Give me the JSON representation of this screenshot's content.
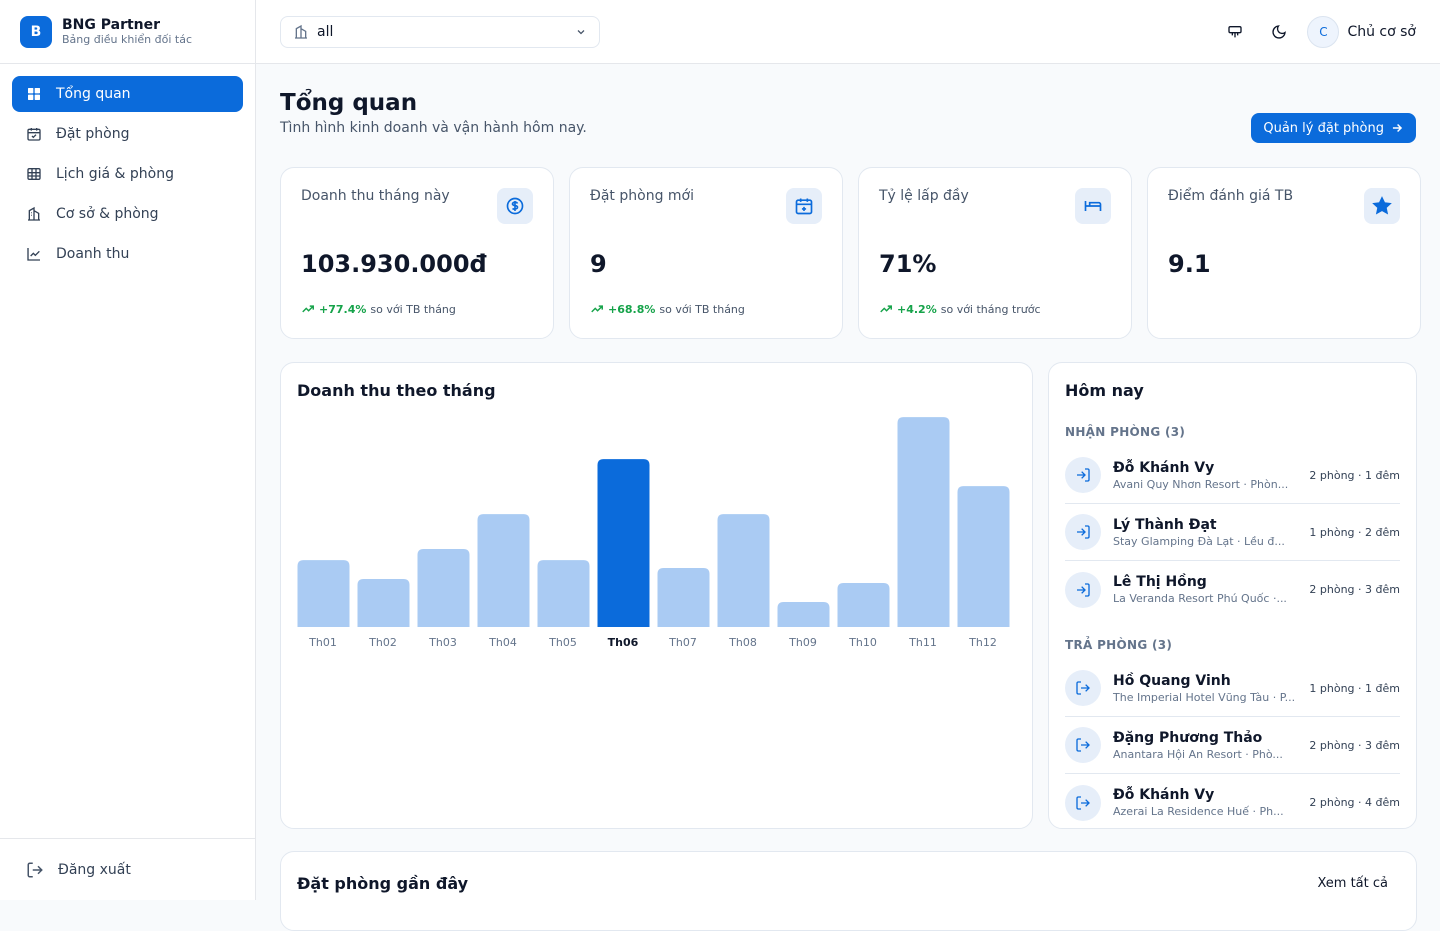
{
  "sidebar": {
    "logo": "B",
    "brand": "BNG Partner",
    "subtitle": "Bảng điều khiển đối tác",
    "nav": [
      "Tổng quan",
      "Đặt phòng",
      "Lịch giá & phòng",
      "Cơ sở & phòng",
      "Doanh thu"
    ],
    "logout": "Đăng xuất"
  },
  "header": {
    "select": "all",
    "avatar": "C",
    "user": "Chủ cơ sở"
  },
  "page": {
    "title": "Tổng quan",
    "subtitle": "Tình hình kinh doanh và vận hành hôm nay.",
    "action": "Quản lý đặt phòng"
  },
  "stats": [
    {
      "label": "Doanh thu tháng này",
      "value": "103.930.000đ",
      "change": "+77.4%",
      "note": "so với TB tháng"
    },
    {
      "label": "Đặt phòng mới",
      "value": "9",
      "change": "+68.8%",
      "note": "so với TB tháng"
    },
    {
      "label": "Tỷ lệ lấp đầy",
      "value": "71%",
      "change": "+4.2%",
      "note": "so với tháng trước"
    },
    {
      "label": "Điểm đánh giá TB",
      "value": "9.1"
    }
  ],
  "chart_data": {
    "type": "bar",
    "title": "Doanh thu theo tháng",
    "categories": [
      "Th01",
      "Th02",
      "Th03",
      "Th04",
      "Th05",
      "Th06",
      "Th07",
      "Th08",
      "Th09",
      "Th10",
      "Th11",
      "Th12"
    ],
    "values": [
      41.4,
      29.7,
      48.3,
      69.9,
      41.4,
      103.9,
      36.5,
      69.9,
      15.5,
      27.2,
      129.9,
      87.2
    ],
    "ylim": [
      0,
      130
    ],
    "color": "#aacbf3",
    "highlight_color": "#0b6bdb",
    "highlight_index": 5
  },
  "today": {
    "title": "Hôm nay",
    "groups": [
      {
        "heading": "NHẬN PHÒNG (3)",
        "items": [
          {
            "name": "Đỗ Khánh Vy",
            "detail": "Avani Quy Nhơn Resort · Phòn...",
            "meta": "2 phòng · 1 đêm"
          },
          {
            "name": "Lý Thành Đạt",
            "detail": "Stay Glamping Đà Lạt · Lều đ...",
            "meta": "1 phòng · 2 đêm"
          },
          {
            "name": "Lê Thị Hồng",
            "detail": "La Veranda Resort Phú Quốc ·...",
            "meta": "2 phòng · 3 đêm"
          }
        ]
      },
      {
        "heading": "TRẢ PHÒNG (3)",
        "items": [
          {
            "name": "Hồ Quang Vinh",
            "detail": "The Imperial Hotel Vũng Tàu · P...",
            "meta": "1 phòng · 1 đêm"
          },
          {
            "name": "Đặng Phương Thảo",
            "detail": "Anantara Hội An Resort · Phò...",
            "meta": "2 phòng · 3 đêm"
          },
          {
            "name": "Đỗ Khánh Vy",
            "detail": "Azerai La Residence Huế · Ph...",
            "meta": "2 phòng · 4 đêm"
          }
        ]
      }
    ]
  },
  "recent": {
    "title": "Đặt phòng gần đây",
    "link": "Xem tất cả"
  }
}
